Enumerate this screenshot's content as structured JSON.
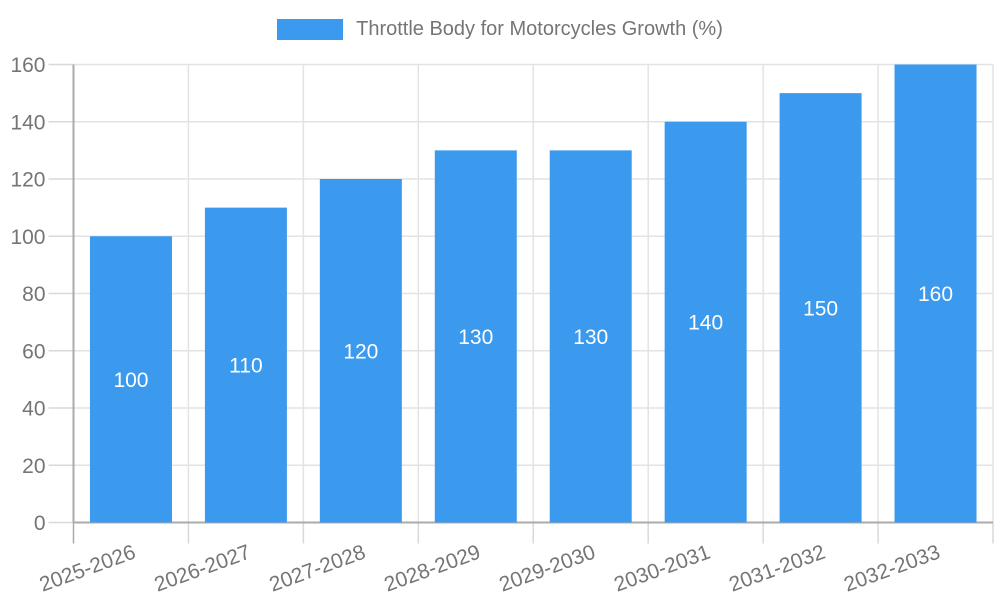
{
  "legend": {
    "swatch_color": "#3b9aee",
    "title": "Throttle Body for Motorcycles Growth (%)"
  },
  "colors": {
    "bar": "#3b9aee",
    "grid": "#e3e3e3",
    "tick": "#d9d9d9",
    "axis": "#ababab",
    "text": "#757575",
    "bar_label": "#ffffff",
    "background": "#ffffff"
  },
  "chart_data": {
    "type": "bar",
    "title": "Throttle Body for Motorcycles Growth (%)",
    "categories": [
      "2025-2026",
      "2026-2027",
      "2027-2028",
      "2028-2029",
      "2029-2030",
      "2030-2031",
      "2031-2032",
      "2032-2033"
    ],
    "values": [
      100,
      110,
      120,
      130,
      130,
      140,
      150,
      160
    ],
    "bar_labels": [
      "100",
      "110",
      "120",
      "130",
      "130",
      "140",
      "150",
      "160"
    ],
    "xlabel": "",
    "ylabel": "",
    "ylim": [
      0,
      160
    ],
    "yticks": [
      0,
      20,
      40,
      60,
      80,
      100,
      120,
      140,
      160
    ],
    "grid": true,
    "legend_position": "top-center",
    "bar_labels_inside": true,
    "x_label_rotation_deg": -20
  }
}
